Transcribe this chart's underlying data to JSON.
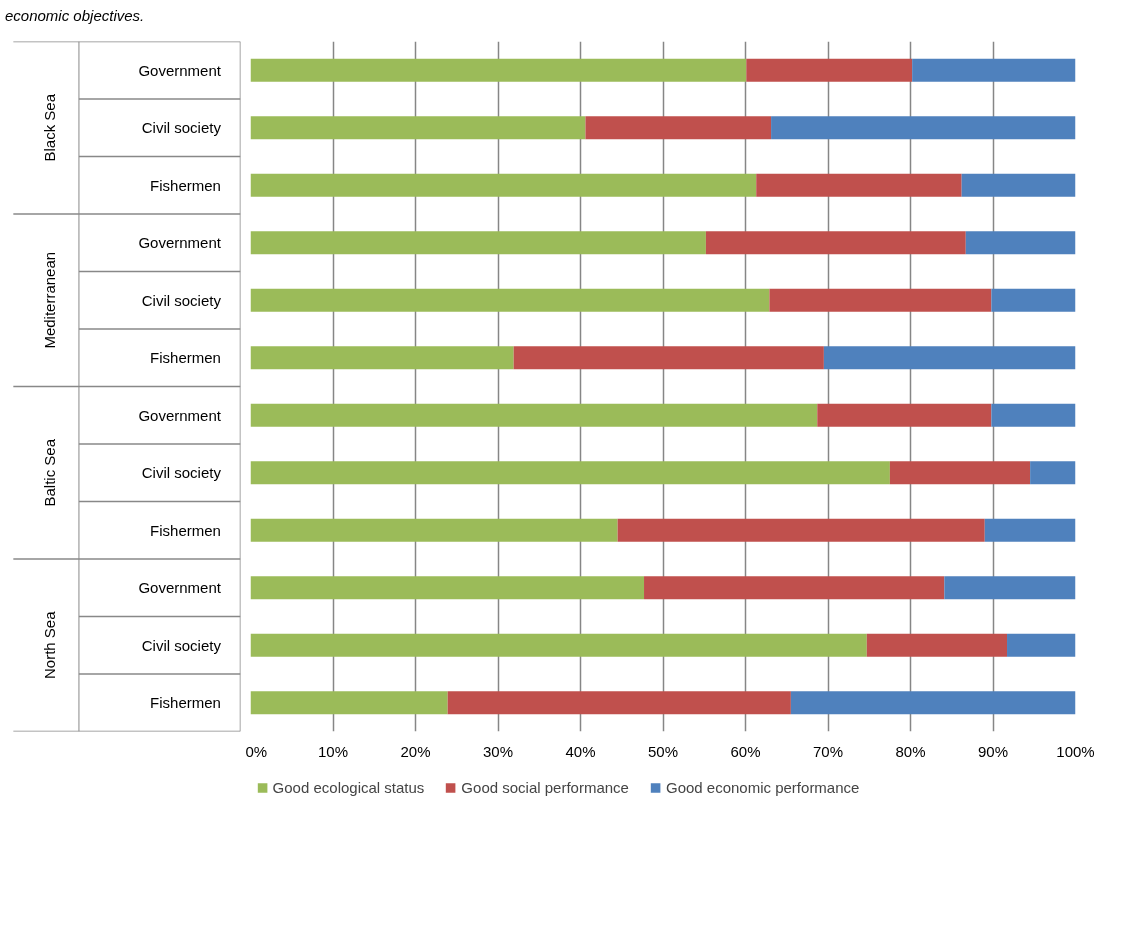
{
  "chart_data": {
    "type": "bar",
    "orientation": "horizontal",
    "stacked": true,
    "categories": [
      "Government",
      "Civil society",
      "Fishermen",
      "Government",
      "Civil society",
      "Fishermen",
      "Government",
      "Civil society",
      "Fishermen",
      "Government",
      "Civil society",
      "Fishermen"
    ],
    "annotations": [
      "economic objectives.",
      "Black Sea",
      "Mediterranean",
      "Baltic Sea",
      "North Sea"
    ],
    "series": [
      {
        "name": "Good ecological status",
        "color": "#9bbb59",
        "values": [
          60.1,
          40.6,
          61.3,
          55.2,
          62.9,
          31.9,
          68.7,
          77.5,
          44.5,
          47.7,
          74.7,
          23.9
        ]
      },
      {
        "name": "Good social performance",
        "color": "#c0504d",
        "values": [
          20.1,
          22.5,
          24.9,
          31.5,
          26.9,
          37.6,
          21.1,
          17.0,
          44.5,
          36.4,
          17.0,
          41.6
        ]
      },
      {
        "name": "Good economic performance",
        "color": "#4f81bd",
        "values": [
          19.8,
          36.9,
          13.8,
          13.3,
          10.2,
          30.5,
          10.2,
          5.5,
          11.0,
          15.9,
          8.3,
          34.5
        ]
      }
    ],
    "xlim": [
      0,
      100
    ],
    "xticks": [
      {
        "value": 0,
        "label": "0%"
      },
      {
        "value": 10,
        "label": "10%"
      },
      {
        "value": 20,
        "label": "20%"
      },
      {
        "value": 30,
        "label": "30%"
      },
      {
        "value": 40,
        "label": "40%"
      },
      {
        "value": 50,
        "label": "50%"
      },
      {
        "value": 60,
        "label": "60%"
      },
      {
        "value": 70,
        "label": "70%"
      },
      {
        "value": 80,
        "label": "80%"
      },
      {
        "value": 90,
        "label": "90%"
      },
      {
        "value": 100,
        "label": "100%"
      }
    ],
    "grid": "x",
    "legend": "bottom"
  }
}
